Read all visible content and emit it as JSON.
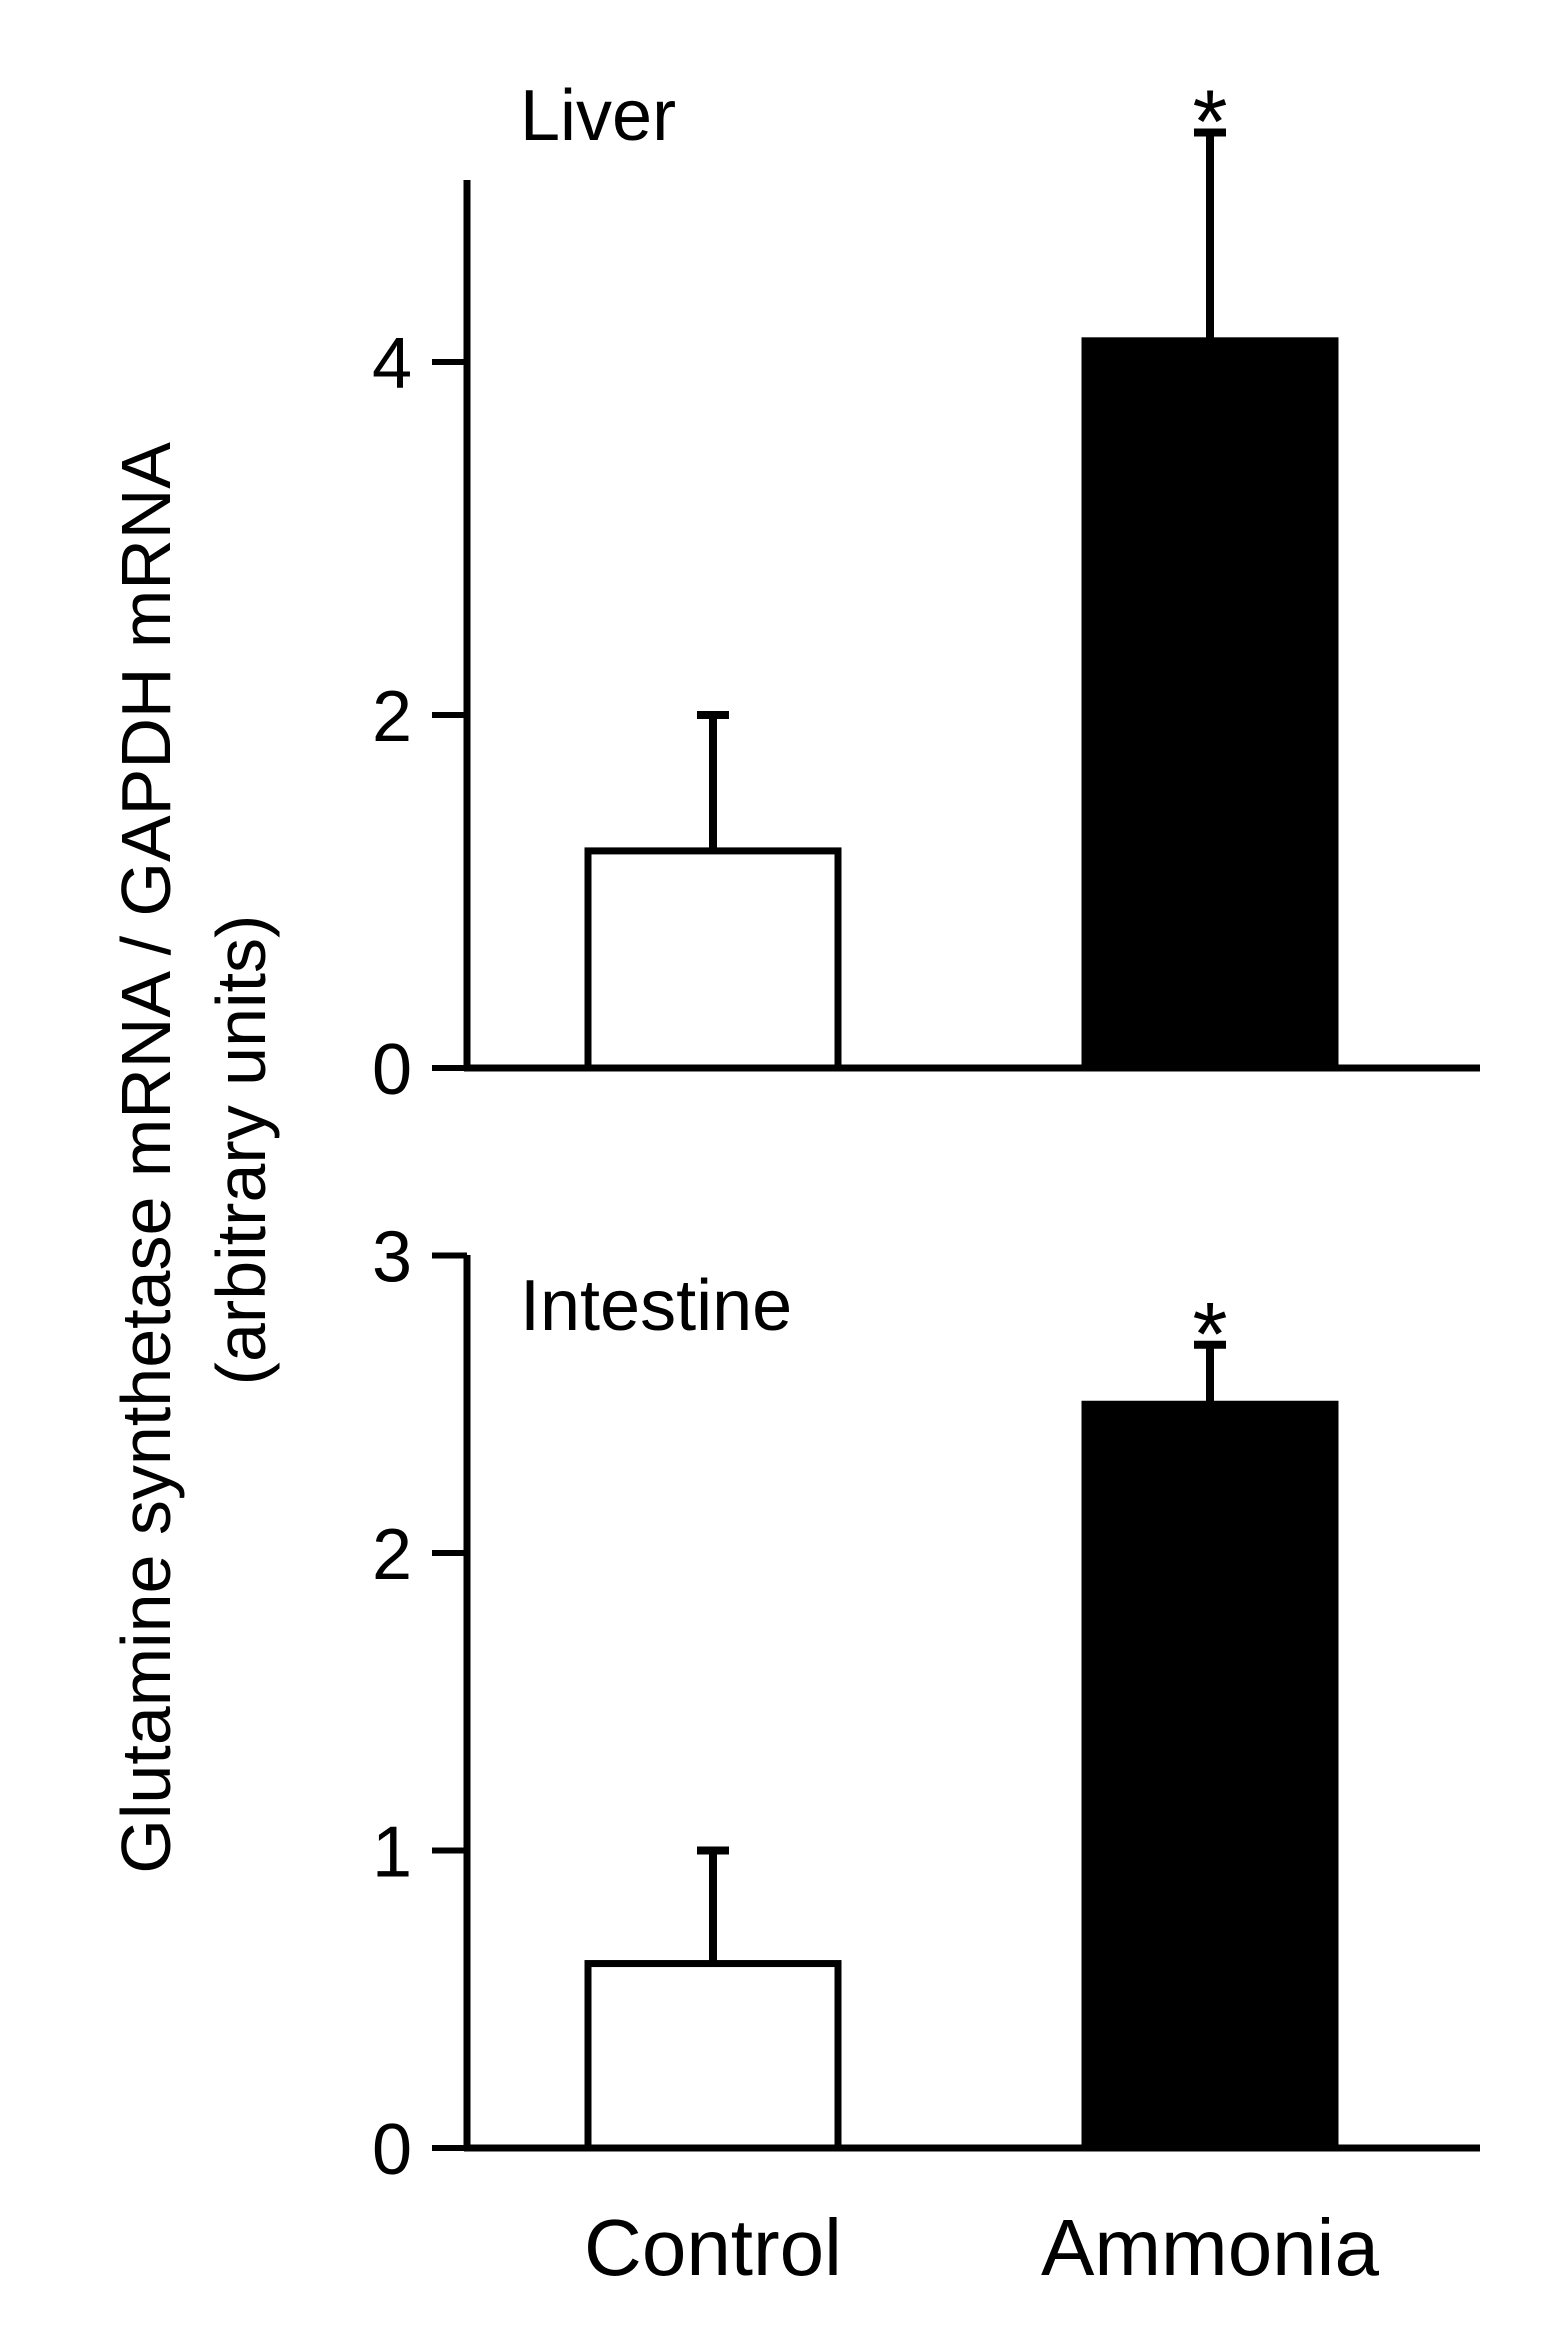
{
  "chart_data": {
    "type": "bar",
    "ylabel_lines": [
      "Glutamine synthetase mRNA / GAPDH mRNA",
      "(arbitrary units)"
    ],
    "categories": [
      "Control",
      "Ammonia"
    ],
    "panels": [
      {
        "title": "Liver",
        "values": [
          1.23,
          4.12
        ],
        "errors": [
          0.77,
          1.18
        ],
        "significance": [
          "",
          "*"
        ],
        "yticks": [
          0,
          2,
          4
        ],
        "ylim": [
          0,
          5.0
        ],
        "fill_colors": [
          "#ffffff",
          "#000000"
        ]
      },
      {
        "title": "Intestine",
        "values": [
          0.62,
          2.5
        ],
        "errors": [
          0.38,
          0.2
        ],
        "significance": [
          "",
          "*"
        ],
        "yticks": [
          0,
          1,
          2,
          3
        ],
        "ylim": [
          0,
          3
        ],
        "fill_colors": [
          "#ffffff",
          "#000000"
        ]
      }
    ]
  }
}
